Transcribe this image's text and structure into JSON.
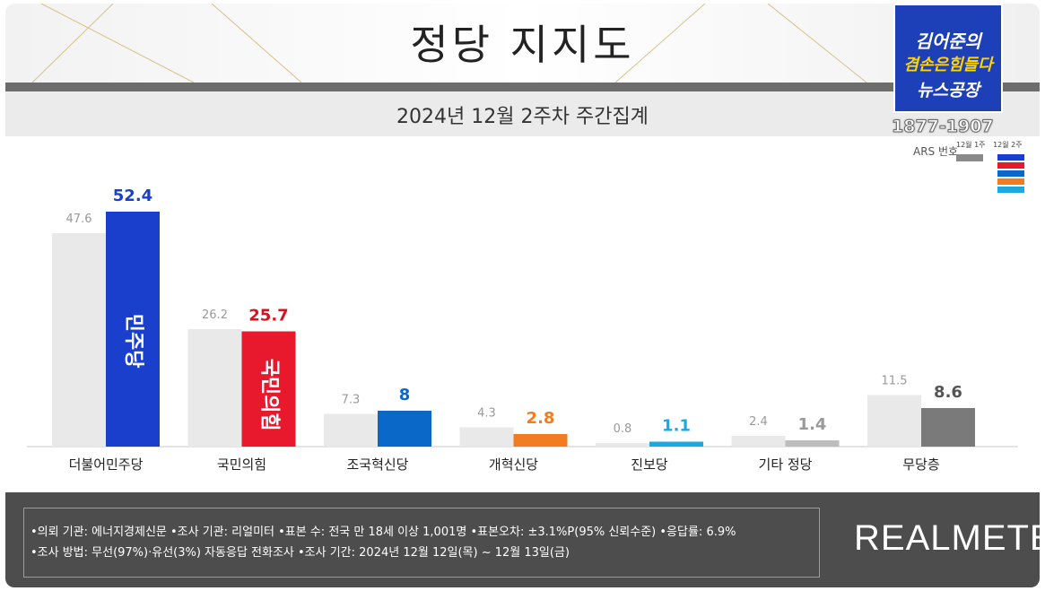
{
  "title": "정당 지지도",
  "subtitle": "2024년 12월 2주차 주간집계",
  "broadcast": {
    "logo_line1": "김어준의",
    "logo_line2": "겸손은힘들다",
    "logo_line3": "뉴스공장",
    "phone": "1877-1907",
    "ars_label": "ARS 번호",
    "legend_prev": "12월 1주",
    "legend_curr": "12월 2주"
  },
  "chart_data": {
    "type": "bar",
    "categories": [
      "더불어민주당",
      "국민의힘",
      "조국혁신당",
      "개혁신당",
      "진보당",
      "기타 정당",
      "무당층"
    ],
    "series": [
      {
        "name": "12월 1주",
        "values": [
          47.6,
          26.2,
          7.3,
          4.3,
          0.8,
          2.4,
          11.5
        ]
      },
      {
        "name": "12월 2주",
        "values": [
          52.4,
          25.7,
          8.0,
          2.8,
          1.1,
          1.4,
          8.6
        ]
      }
    ],
    "current_colors": [
      "#1a3fcc",
      "#e8192c",
      "#0a68c8",
      "#f47c20",
      "#1ba8e0",
      "#bdbdbd",
      "#7a7a7a"
    ],
    "label_colors": [
      "#1a3fcc",
      "#d8121f",
      "#0a68c8",
      "#f47c20",
      "#1ba8e0",
      "#9a9a9a",
      "#555555"
    ],
    "prev_color": "#e9e9e9",
    "bar_logos": {
      "0": "민주당",
      "1": "국민의힘"
    },
    "ylim": [
      0,
      60
    ],
    "grid": false
  },
  "footer": {
    "line1": "•의뢰 기관: 에너지경제신문  •조사 기관: 리얼미터 •표본 수: 전국 만 18세 이상 1,001명 •표본오차: ±3.1%P(95% 신뢰수준) •응답률: 6.9%",
    "line2": "•조사 방법: 무선(97%)·유선(3%) 자동응답 전화조사  •조사 기간: 2024년 12월 12일(목) ~ 12월 13일(금)",
    "brand": "REALMETER"
  }
}
